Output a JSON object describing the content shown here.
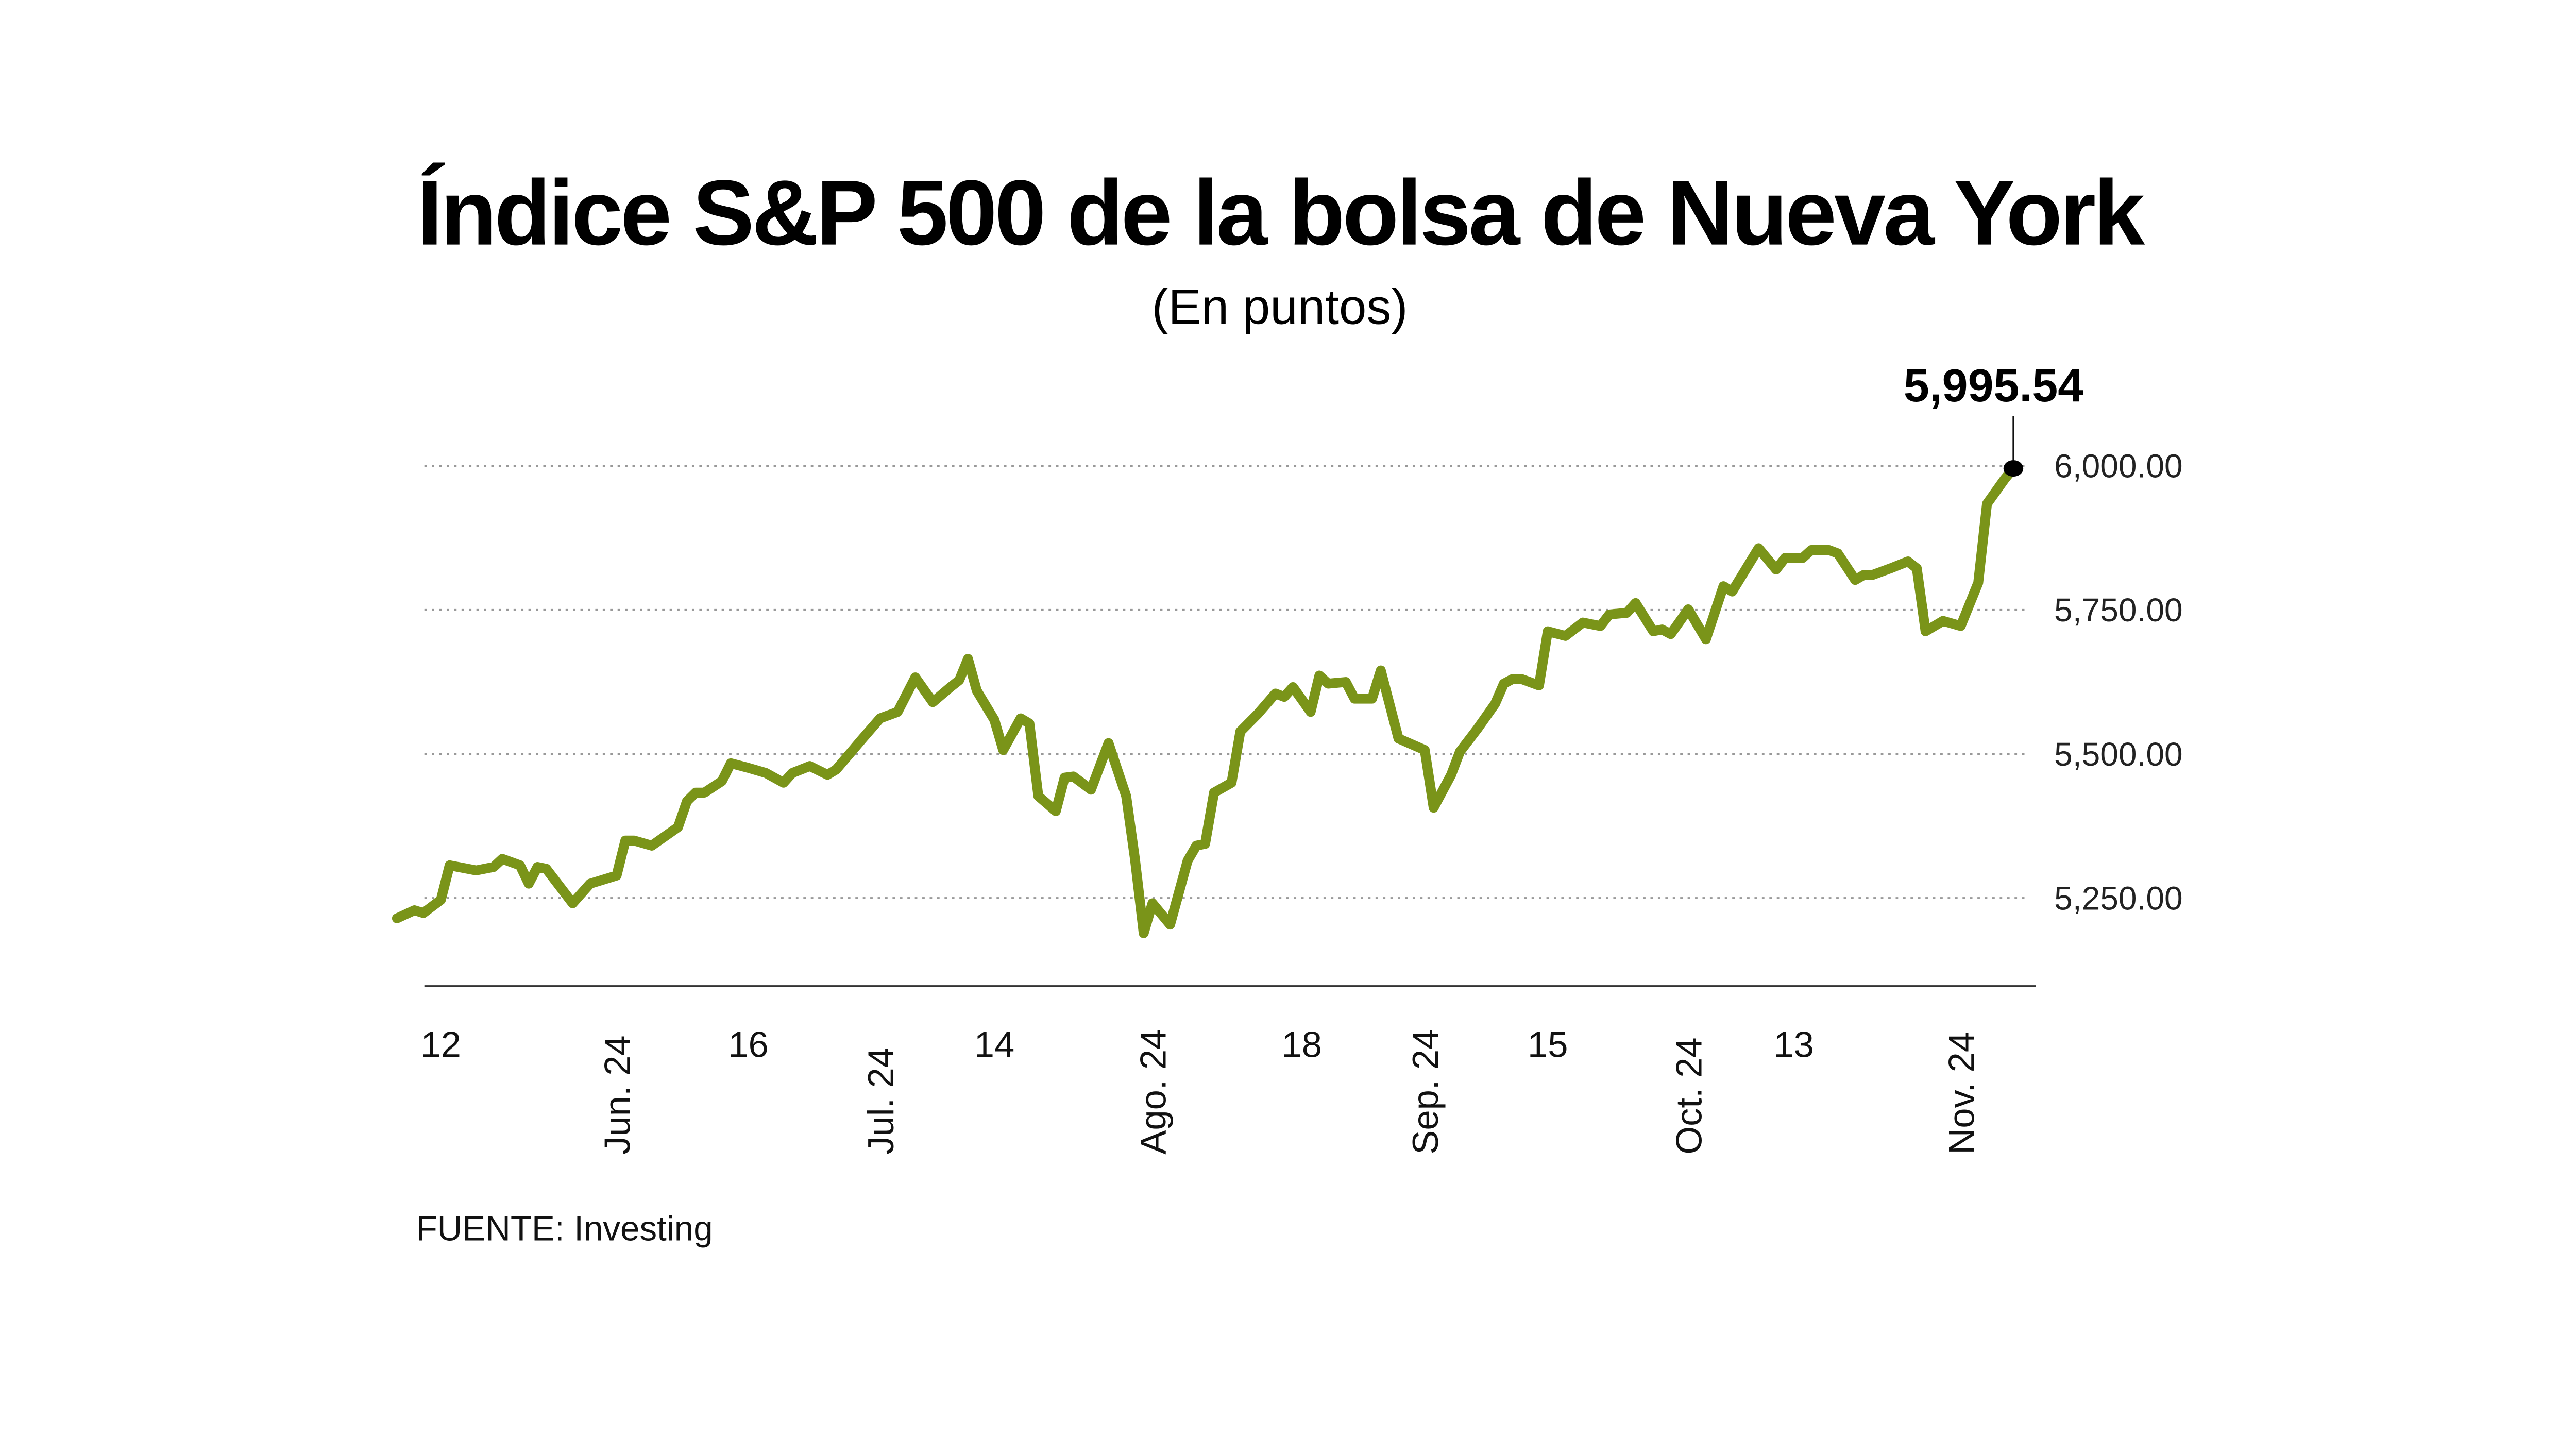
{
  "chart_data": {
    "type": "line",
    "title": "Índice S&P 500 de la bolsa de Nueva York",
    "subtitle": "(En puntos)",
    "source": "FUENTE: Investing",
    "line_color": "#7a9419",
    "ylim": [
      5100,
      6060
    ],
    "grid": true,
    "y_ticks": [
      {
        "value": 6000,
        "label": "6,000.00"
      },
      {
        "value": 5750,
        "label": "5,750.00"
      },
      {
        "value": 5500,
        "label": "5,500.00"
      },
      {
        "value": 5250,
        "label": "5,250.00"
      }
    ],
    "x_ticks": [
      {
        "date": "2024-05-12",
        "label": "12",
        "month": false
      },
      {
        "date": "2024-06-01",
        "label": "Jun. 24",
        "month": true
      },
      {
        "date": "2024-06-16",
        "label": "16",
        "month": false
      },
      {
        "date": "2024-07-01",
        "label": "Jul. 24",
        "month": true
      },
      {
        "date": "2024-07-14",
        "label": "14",
        "month": false
      },
      {
        "date": "2024-08-01",
        "label": "Ago. 24",
        "month": true
      },
      {
        "date": "2024-08-18",
        "label": "18",
        "month": false
      },
      {
        "date": "2024-09-01",
        "label": "Sep. 24",
        "month": true
      },
      {
        "date": "2024-09-15",
        "label": "15",
        "month": false
      },
      {
        "date": "2024-10-01",
        "label": "Oct. 24",
        "month": true
      },
      {
        "date": "2024-10-13",
        "label": "13",
        "month": false
      },
      {
        "date": "2024-11-01",
        "label": "Nov. 24",
        "month": true
      }
    ],
    "annotation": {
      "label": "5,995.54",
      "value": 5995.54
    },
    "series": [
      {
        "x": [
          "2024-05-07",
          "2024-05-09",
          "2024-05-10",
          "2024-05-12",
          "2024-05-13",
          "2024-05-16",
          "2024-05-18",
          "2024-05-19",
          "2024-05-21",
          "2024-05-22",
          "2024-05-23",
          "2024-05-24",
          "2024-05-27",
          "2024-05-29",
          "2024-06-01",
          "2024-06-02",
          "2024-06-03",
          "2024-06-05",
          "2024-06-08",
          "2024-06-09",
          "2024-06-10",
          "2024-06-11",
          "2024-06-13",
          "2024-06-14",
          "2024-06-16",
          "2024-06-18",
          "2024-06-20",
          "2024-06-21",
          "2024-06-23",
          "2024-06-25",
          "2024-06-26",
          "2024-06-29",
          "2024-07-01",
          "2024-07-03",
          "2024-07-05",
          "2024-07-07",
          "2024-07-09",
          "2024-07-10",
          "2024-07-11",
          "2024-07-12",
          "2024-07-14",
          "2024-07-15",
          "2024-07-17",
          "2024-07-18",
          "2024-07-19",
          "2024-07-21",
          "2024-07-22",
          "2024-07-23",
          "2024-07-25",
          "2024-07-27",
          "2024-07-29",
          "2024-07-30",
          "2024-07-31",
          "2024-08-01",
          "2024-08-03",
          "2024-08-05",
          "2024-08-06",
          "2024-08-07",
          "2024-08-08",
          "2024-08-10",
          "2024-08-11",
          "2024-08-13",
          "2024-08-15",
          "2024-08-16",
          "2024-08-17",
          "2024-08-19",
          "2024-08-20",
          "2024-08-21",
          "2024-08-23",
          "2024-08-24",
          "2024-08-26",
          "2024-08-27",
          "2024-08-29",
          "2024-09-01",
          "2024-09-02",
          "2024-09-04",
          "2024-09-05",
          "2024-09-07",
          "2024-09-09",
          "2024-09-10",
          "2024-09-11",
          "2024-09-12",
          "2024-09-14",
          "2024-09-15",
          "2024-09-17",
          "2024-09-19",
          "2024-09-21",
          "2024-09-22",
          "2024-09-24",
          "2024-09-25",
          "2024-09-27",
          "2024-09-28",
          "2024-09-29",
          "2024-10-01",
          "2024-10-03",
          "2024-10-05",
          "2024-10-06",
          "2024-10-09",
          "2024-10-11",
          "2024-10-12",
          "2024-10-14",
          "2024-10-15",
          "2024-10-17",
          "2024-10-18",
          "2024-10-20",
          "2024-10-21",
          "2024-10-22",
          "2024-10-24",
          "2024-10-26",
          "2024-10-27",
          "2024-10-28",
          "2024-10-30",
          "2024-11-01",
          "2024-11-03",
          "2024-11-04",
          "2024-11-06",
          "2024-11-07"
        ],
        "values": [
          5215,
          5229,
          5224,
          5247,
          5307,
          5298,
          5304,
          5318,
          5307,
          5275,
          5304,
          5301,
          5241,
          5275,
          5289,
          5350,
          5350,
          5341,
          5373,
          5418,
          5433,
          5433,
          5453,
          5484,
          5476,
          5467,
          5450,
          5467,
          5479,
          5464,
          5473,
          5527,
          5562,
          5573,
          5633,
          5590,
          5616,
          5628,
          5665,
          5610,
          5559,
          5507,
          5562,
          5553,
          5427,
          5401,
          5459,
          5461,
          5438,
          5519,
          5427,
          5318,
          5189,
          5241,
          5204,
          5315,
          5341,
          5344,
          5433,
          5450,
          5539,
          5570,
          5605,
          5599,
          5616,
          5573,
          5636,
          5622,
          5625,
          5596,
          5596,
          5645,
          5527,
          5507,
          5407,
          5464,
          5504,
          5544,
          5587,
          5622,
          5630,
          5630,
          5619,
          5713,
          5705,
          5728,
          5722,
          5742,
          5745,
          5762,
          5713,
          5716,
          5708,
          5751,
          5699,
          5791,
          5782,
          5857,
          5820,
          5840,
          5840,
          5854,
          5854,
          5848,
          5802,
          5811,
          5811,
          5822,
          5834,
          5822,
          5713,
          5731,
          5722,
          5797,
          5934,
          5977,
          5995.54
        ]
      }
    ]
  }
}
